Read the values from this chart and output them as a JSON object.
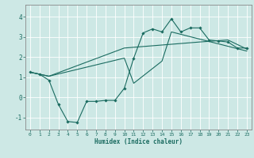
{
  "xlabel": "Humidex (Indice chaleur)",
  "bg_color": "#cde8e5",
  "line_color": "#1a6b60",
  "grid_color": "#ffffff",
  "xlim": [
    -0.5,
    23.5
  ],
  "ylim": [
    -1.6,
    4.6
  ],
  "yticks": [
    -1,
    0,
    1,
    2,
    3,
    4
  ],
  "xticks": [
    0,
    1,
    2,
    3,
    4,
    5,
    6,
    7,
    8,
    9,
    10,
    11,
    12,
    13,
    14,
    15,
    16,
    17,
    18,
    19,
    20,
    21,
    22,
    23
  ],
  "line1_x": [
    0,
    1,
    2,
    3,
    4,
    5,
    6,
    7,
    8,
    9,
    10,
    11,
    12,
    13,
    14,
    15,
    16,
    17,
    18,
    19,
    20,
    21,
    22,
    23
  ],
  "line1_y": [
    1.25,
    1.15,
    0.85,
    -0.35,
    -1.2,
    -1.25,
    -0.2,
    -0.2,
    -0.15,
    -0.15,
    0.45,
    1.95,
    3.2,
    3.4,
    3.25,
    3.9,
    3.25,
    3.45,
    3.45,
    2.85,
    2.8,
    2.75,
    2.45,
    2.45
  ],
  "line2_x": [
    0,
    2,
    10,
    14,
    18,
    21,
    23
  ],
  "line2_y": [
    1.25,
    1.05,
    2.45,
    2.6,
    2.75,
    2.85,
    2.4
  ],
  "line3_x": [
    0,
    2,
    10,
    11,
    14,
    15,
    23
  ],
  "line3_y": [
    1.25,
    1.05,
    1.95,
    0.7,
    1.8,
    3.25,
    2.3
  ]
}
